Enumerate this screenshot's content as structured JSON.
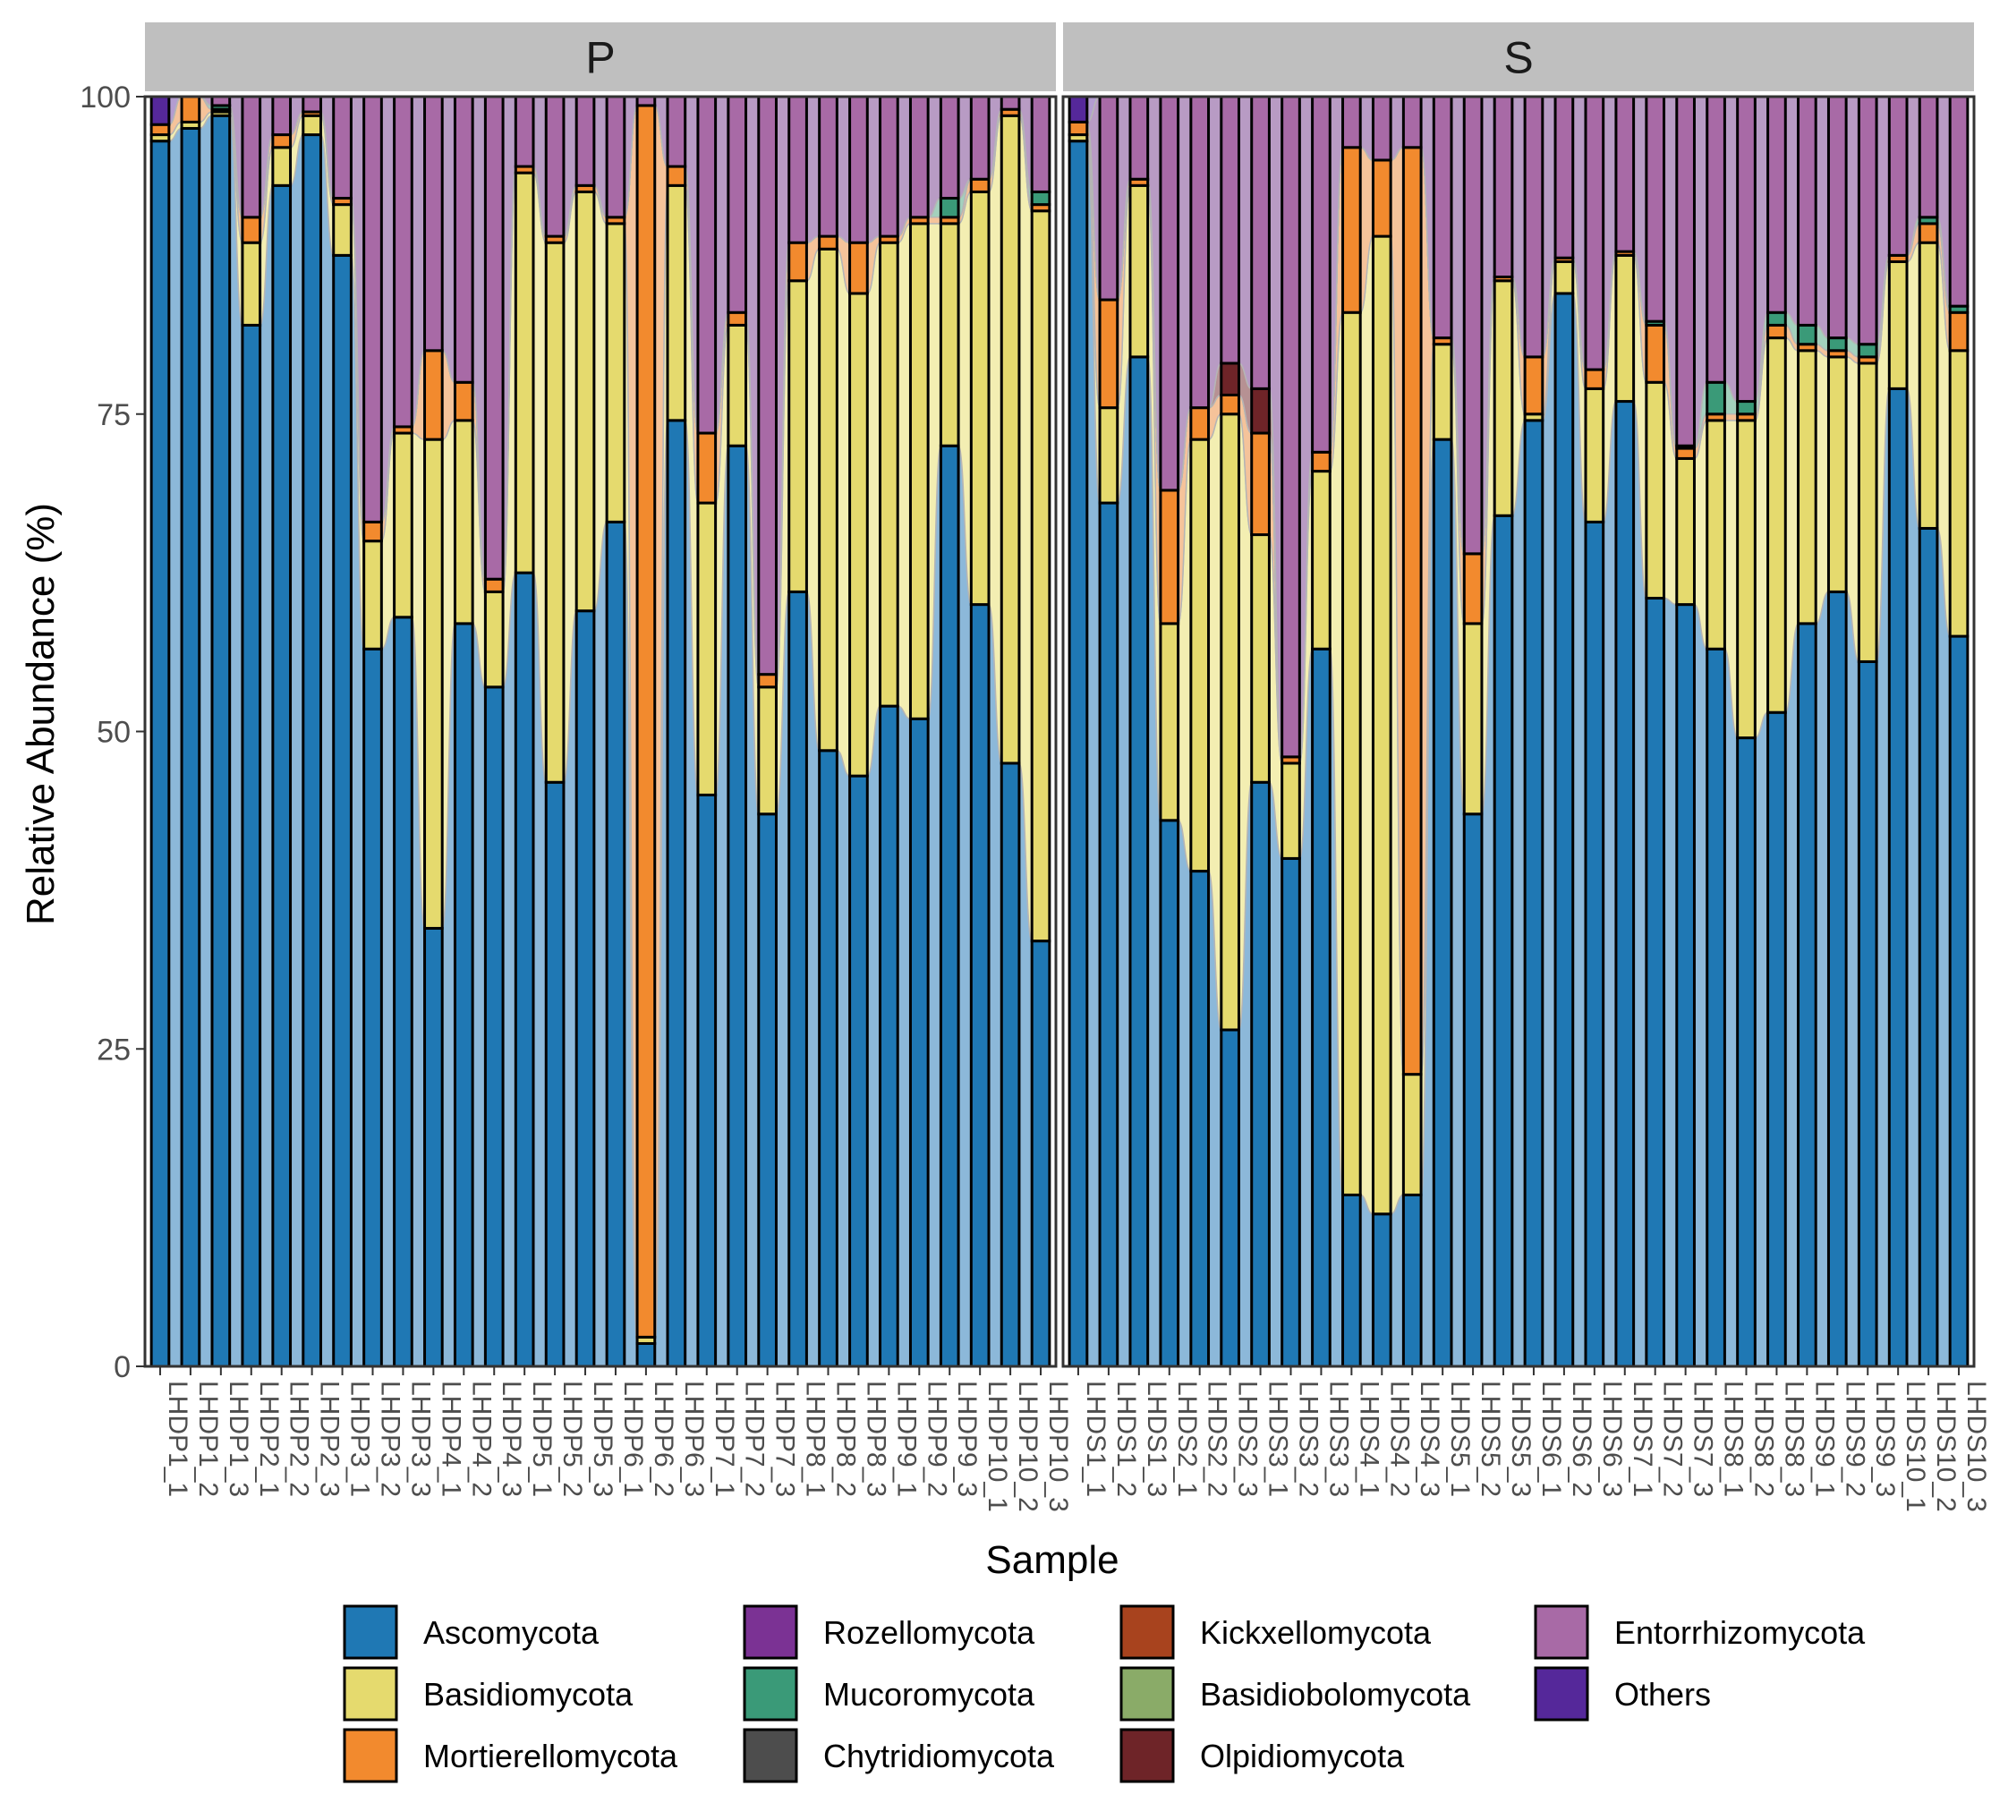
{
  "chart_data": {
    "type": "bar",
    "subtype": "stacked-percent-with-alluvial-flow",
    "ylabel": "Relative  Abundance (%)",
    "xlabel": "Sample",
    "ylim": [
      0,
      100
    ],
    "yticks": [
      0,
      25,
      50,
      75,
      100
    ],
    "ytick_labels": [
      "0",
      "25",
      "50",
      "75",
      "100"
    ],
    "legend_position": "bottom",
    "phyla": [
      "Ascomycota",
      "Basidiomycota",
      "Mortierellomycota",
      "Rozellomycota",
      "Mucoromycota",
      "Chytridiomycota",
      "Kickxellomycota",
      "Basidiobolomycota",
      "Olpidiomycota",
      "Entorrhizomycota",
      "Others"
    ],
    "legend_order": [
      "Ascomycota",
      "Basidiomycota",
      "Mortierellomycota",
      "Rozellomycota",
      "Mucoromycota",
      "Chytridiomycota",
      "Kickxellomycota",
      "Basidiobolomycota",
      "Olpidiomycota",
      "Entorrhizomycota",
      "Others"
    ],
    "colors": {
      "Ascomycota": "#1f78b4",
      "Basidiomycota": "#e5da6e",
      "Mortierellomycota": "#f28a2e",
      "Rozellomycota": "#7b3294",
      "Mucoromycota": "#3a9a78",
      "Chytridiomycota": "#4d4d4d",
      "Kickxellomycota": "#a8431e",
      "Basidiobolomycota": "#8aab68",
      "Olpidiomycota": "#6e2428",
      "Entorrhizomycota": "#a86aa6",
      "Others": "#55289a"
    },
    "flow_colors": {
      "Ascomycota": "#8cb8d9",
      "Basidiomycota": "#f3eeb2",
      "Mortierellomycota": "#f5c39a",
      "Rozellomycota": "#b89bc4",
      "Mucoromycota": "#a3d0bd",
      "Chytridiomycota": "#a6a6a6",
      "Kickxellomycota": "#d3a18e",
      "Basidiobolomycota": "#c4d5b3",
      "Olpidiomycota": "#b69193",
      "Entorrhizomycota": "#b89bc4",
      "Others": "#b39dd0"
    },
    "facets": [
      {
        "name": "P",
        "samples": [
          {
            "name": "LHDP1_1",
            "values": [
              96.5,
              0.5,
              0.8,
              0,
              0,
              0,
              0,
              0,
              0,
              0,
              2.2
            ]
          },
          {
            "name": "LHDP1_2",
            "values": [
              97.5,
              0.5,
              2.0,
              0,
              0,
              0,
              0,
              0,
              0,
              0,
              0
            ]
          },
          {
            "name": "LHDP1_3",
            "values": [
              98.5,
              0.3,
              0.2,
              0,
              0.3,
              0,
              0,
              0,
              0,
              0.7,
              0
            ]
          },
          {
            "name": "LHDP2_1",
            "values": [
              82.0,
              6.5,
              2.0,
              0,
              0,
              0,
              0,
              0,
              0,
              9.5,
              0
            ]
          },
          {
            "name": "LHDP2_2",
            "values": [
              93.0,
              3.0,
              1.0,
              0,
              0,
              0,
              0,
              0,
              0,
              3.0,
              0
            ]
          },
          {
            "name": "LHDP2_3",
            "values": [
              97.0,
              1.5,
              0.3,
              0,
              0,
              0,
              0,
              0,
              0,
              1.2,
              0
            ]
          },
          {
            "name": "LHDP3_1",
            "values": [
              87.5,
              4.0,
              0.5,
              0,
              0,
              0,
              0,
              0,
              0,
              8.0,
              0
            ]
          },
          {
            "name": "LHDP3_2",
            "values": [
              56.5,
              8.5,
              1.5,
              0,
              0,
              0,
              0,
              0,
              0,
              33.5,
              0
            ]
          },
          {
            "name": "LHDP3_3",
            "values": [
              59.0,
              14.5,
              0.5,
              0,
              0,
              0,
              0,
              0,
              0,
              26.0,
              0
            ]
          },
          {
            "name": "LHDP4_1",
            "values": [
              34.5,
              38.5,
              7.0,
              0,
              0,
              0,
              0,
              0,
              0,
              20.0,
              0
            ]
          },
          {
            "name": "LHDP4_2",
            "values": [
              58.5,
              16.0,
              3.0,
              0,
              0,
              0,
              0,
              0,
              0,
              22.5,
              0
            ]
          },
          {
            "name": "LHDP4_3",
            "values": [
              53.5,
              7.5,
              1.0,
              0,
              0,
              0,
              0,
              0,
              0,
              38.0,
              0
            ]
          },
          {
            "name": "LHDP5_1",
            "values": [
              62.5,
              31.5,
              0.5,
              0,
              0,
              0,
              0,
              0,
              0,
              5.5,
              0
            ]
          },
          {
            "name": "LHDP5_2",
            "values": [
              46.0,
              42.5,
              0.5,
              0,
              0,
              0,
              0,
              0,
              0,
              11.0,
              0
            ]
          },
          {
            "name": "LHDP5_3",
            "values": [
              59.5,
              33.0,
              0.5,
              0,
              0,
              0,
              0,
              0,
              0,
              7.0,
              0
            ]
          },
          {
            "name": "LHDP6_1",
            "values": [
              66.5,
              23.5,
              0.5,
              0,
              0,
              0,
              0,
              0,
              0,
              9.5,
              0
            ]
          },
          {
            "name": "LHDP6_2",
            "values": [
              1.8,
              0.5,
              97.0,
              0,
              0,
              0,
              0,
              0,
              0,
              0.7,
              0
            ]
          },
          {
            "name": "LHDP6_3",
            "values": [
              74.5,
              18.5,
              1.5,
              0,
              0,
              0,
              0,
              0,
              0,
              5.5,
              0
            ]
          },
          {
            "name": "LHDP7_1",
            "values": [
              45.0,
              23.0,
              5.5,
              0,
              0,
              0,
              0,
              0,
              0,
              26.5,
              0
            ]
          },
          {
            "name": "LHDP7_2",
            "values": [
              72.5,
              9.5,
              1.0,
              0,
              0,
              0,
              0,
              0,
              0,
              17.0,
              0
            ]
          },
          {
            "name": "LHDP7_3",
            "values": [
              43.5,
              10.0,
              1.0,
              0,
              0,
              0,
              0,
              0,
              0,
              45.5,
              0
            ]
          },
          {
            "name": "LHDP8_1",
            "values": [
              61.0,
              24.5,
              3.0,
              0,
              0,
              0,
              0,
              0,
              0,
              11.5,
              0
            ]
          },
          {
            "name": "LHDP8_2",
            "values": [
              48.5,
              39.5,
              1.0,
              0,
              0,
              0,
              0,
              0,
              0,
              11.0,
              0
            ]
          },
          {
            "name": "LHDP8_3",
            "values": [
              46.5,
              38.0,
              4.0,
              0,
              0,
              0,
              0,
              0,
              0,
              11.5,
              0
            ]
          },
          {
            "name": "LHDP9_1",
            "values": [
              52.0,
              36.5,
              0.5,
              0,
              0,
              0,
              0,
              0,
              0,
              11.0,
              0
            ]
          },
          {
            "name": "LHDP9_2",
            "values": [
              51.0,
              39.0,
              0.5,
              0,
              0,
              0,
              0,
              0,
              0,
              9.5,
              0
            ]
          },
          {
            "name": "LHDP9_3",
            "values": [
              72.5,
              17.5,
              0.5,
              0,
              1.5,
              0,
              0,
              0,
              0,
              8.0,
              0
            ]
          },
          {
            "name": "LHDP10_1",
            "values": [
              60.0,
              32.5,
              1.0,
              0,
              0,
              0,
              0,
              0,
              0,
              6.5,
              0
            ]
          },
          {
            "name": "LHDP10_2",
            "values": [
              47.5,
              51.0,
              0.5,
              0,
              0,
              0,
              0,
              0,
              0,
              1.0,
              0
            ]
          },
          {
            "name": "LHDP10_3",
            "values": [
              33.5,
              57.5,
              0.5,
              0,
              1.0,
              0,
              0,
              0,
              0,
              7.5,
              0
            ]
          }
        ]
      },
      {
        "name": "S",
        "samples": [
          {
            "name": "LHDS1_1",
            "values": [
              96.5,
              0.5,
              1.0,
              0,
              0,
              0,
              0,
              0,
              0,
              0,
              2.0
            ]
          },
          {
            "name": "LHDS1_2",
            "values": [
              68.0,
              7.5,
              8.5,
              0,
              0,
              0,
              0,
              0,
              0,
              16.0,
              0
            ]
          },
          {
            "name": "LHDS1_3",
            "values": [
              79.5,
              13.5,
              0.5,
              0,
              0,
              0,
              0,
              0,
              0,
              6.5,
              0
            ]
          },
          {
            "name": "LHDS2_1",
            "values": [
              43.0,
              15.5,
              10.5,
              0,
              0,
              0,
              0,
              0,
              0,
              31.0,
              0
            ]
          },
          {
            "name": "LHDS2_2",
            "values": [
              39.0,
              34.0,
              2.5,
              0,
              0,
              0,
              0,
              0,
              0,
              24.5,
              0
            ]
          },
          {
            "name": "LHDS2_3",
            "values": [
              26.5,
              48.5,
              1.5,
              0,
              0,
              0,
              0,
              0,
              2.5,
              21.0,
              0
            ]
          },
          {
            "name": "LHDS3_1",
            "values": [
              46.0,
              19.5,
              8.0,
              0,
              0,
              0,
              0,
              0,
              3.5,
              23.0,
              0
            ]
          },
          {
            "name": "LHDS3_2",
            "values": [
              40.0,
              7.5,
              0.5,
              0,
              0,
              0,
              0,
              0,
              0,
              52.0,
              0
            ]
          },
          {
            "name": "LHDS3_3",
            "values": [
              56.5,
              14.0,
              1.5,
              0,
              0,
              0,
              0,
              0,
              0,
              28.0,
              0
            ]
          },
          {
            "name": "LHDS4_1",
            "values": [
              13.5,
              69.5,
              13.0,
              0,
              0,
              0,
              0,
              0,
              0,
              4.0,
              0
            ]
          },
          {
            "name": "LHDS4_2",
            "values": [
              12.0,
              77.0,
              6.0,
              0,
              0,
              0,
              0,
              0,
              0,
              5.0,
              0
            ]
          },
          {
            "name": "LHDS4_3",
            "values": [
              13.5,
              9.5,
              73.0,
              0,
              0,
              0,
              0,
              0,
              0,
              4.0,
              0
            ]
          },
          {
            "name": "LHDS5_1",
            "values": [
              73.0,
              7.5,
              0.5,
              0,
              0,
              0,
              0,
              0,
              0,
              19.0,
              0
            ]
          },
          {
            "name": "LHDS5_2",
            "values": [
              43.5,
              15.0,
              5.5,
              0,
              0,
              0,
              0,
              0,
              0,
              36.0,
              0
            ]
          },
          {
            "name": "LHDS5_3",
            "values": [
              67.0,
              18.5,
              0.3,
              0,
              0,
              0,
              0,
              0,
              0,
              14.2,
              0
            ]
          },
          {
            "name": "LHDS6_1",
            "values": [
              74.5,
              0.5,
              4.5,
              0,
              0,
              0,
              0,
              0,
              0,
              20.5,
              0
            ]
          },
          {
            "name": "LHDS6_2",
            "values": [
              84.5,
              2.5,
              0.3,
              0,
              0,
              0,
              0,
              0,
              0,
              12.7,
              0
            ]
          },
          {
            "name": "LHDS6_3",
            "values": [
              66.5,
              10.5,
              1.5,
              0,
              0,
              0,
              0,
              0,
              0,
              21.5,
              0
            ]
          },
          {
            "name": "LHDS7_1",
            "values": [
              76.0,
              11.5,
              0.3,
              0,
              0,
              0,
              0,
              0,
              0,
              12.2,
              0
            ]
          },
          {
            "name": "LHDS7_2",
            "values": [
              60.5,
              17.0,
              4.5,
              0,
              0.3,
              0,
              0,
              0,
              0,
              17.7,
              0
            ]
          },
          {
            "name": "LHDS7_3",
            "values": [
              60.0,
              11.5,
              0.8,
              0,
              0.2,
              0,
              0,
              0,
              0,
              27.5,
              0
            ]
          },
          {
            "name": "LHDS8_1",
            "values": [
              56.5,
              18.0,
              0.5,
              0,
              2.5,
              0,
              0,
              0,
              0,
              22.5,
              0
            ]
          },
          {
            "name": "LHDS8_2",
            "values": [
              49.5,
              25.0,
              0.5,
              0,
              1.0,
              0,
              0,
              0,
              0,
              24.0,
              0
            ]
          },
          {
            "name": "LHDS8_3",
            "values": [
              51.5,
              29.5,
              1.0,
              0,
              1.0,
              0,
              0,
              0,
              0,
              17.0,
              0
            ]
          },
          {
            "name": "LHDS9_1",
            "values": [
              58.5,
              21.5,
              0.5,
              0,
              1.5,
              0,
              0,
              0,
              0,
              18.0,
              0
            ]
          },
          {
            "name": "LHDS9_2",
            "values": [
              61.0,
              18.5,
              0.5,
              0,
              1.0,
              0,
              0,
              0,
              0,
              19.0,
              0
            ]
          },
          {
            "name": "LHDS9_3",
            "values": [
              55.5,
              23.5,
              0.5,
              0,
              1.0,
              0,
              0,
              0,
              0,
              19.5,
              0
            ]
          },
          {
            "name": "LHDS10_1",
            "values": [
              77.0,
              10.0,
              0.5,
              0,
              0,
              0,
              0,
              0,
              0,
              12.5,
              0
            ]
          },
          {
            "name": "LHDS10_2",
            "values": [
              66.0,
              22.5,
              1.5,
              0,
              0.5,
              0,
              0,
              0,
              0,
              9.5,
              0
            ]
          },
          {
            "name": "LHDS10_3",
            "values": [
              57.5,
              22.5,
              3.0,
              0,
              0.5,
              0,
              0,
              0,
              0,
              16.5,
              0
            ]
          }
        ]
      }
    ]
  }
}
